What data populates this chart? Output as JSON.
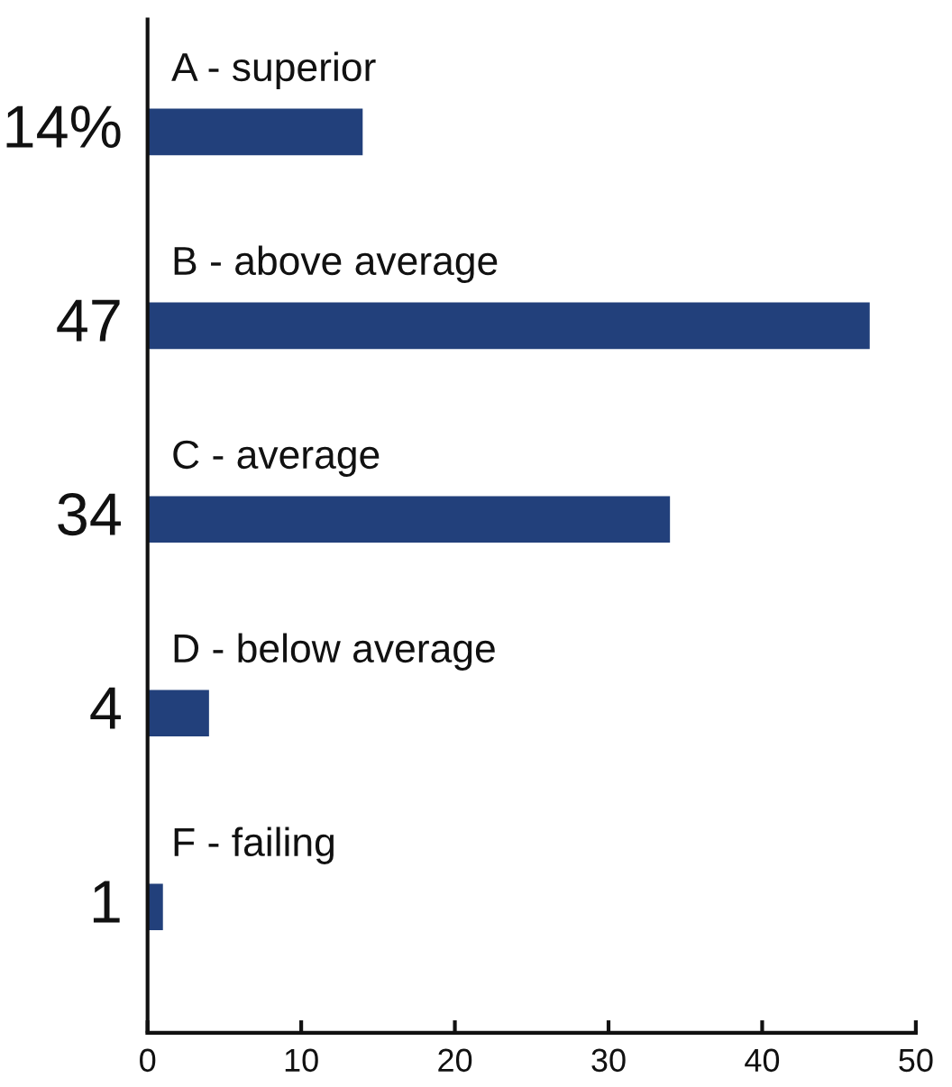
{
  "chart_data": {
    "type": "bar",
    "orientation": "horizontal",
    "categories": [
      "A - superior",
      "B - above average",
      "C - average",
      "D - below average",
      "F - failing"
    ],
    "values": [
      14,
      47,
      34,
      4,
      1
    ],
    "value_labels": [
      "14%",
      "47",
      "34",
      "4",
      "1"
    ],
    "color": "#22407b",
    "xlim": [
      0,
      50
    ],
    "xticks": [
      0,
      10,
      20,
      30,
      40,
      50
    ]
  }
}
